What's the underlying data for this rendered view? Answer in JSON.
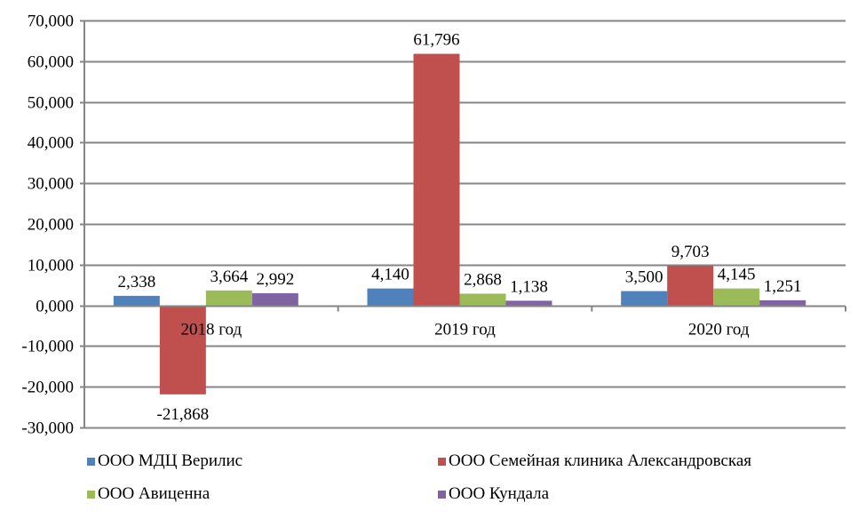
{
  "chart_data": {
    "type": "bar",
    "title": "",
    "xlabel": "",
    "ylabel": "",
    "categories": [
      "2018 год",
      "2019 год",
      "2020 год"
    ],
    "series": [
      {
        "name": "ООО МДЦ Верилис",
        "color": "#4F81BD",
        "values": [
          2.338,
          4.14,
          3.5
        ],
        "labels": [
          "2,338",
          "4,140",
          "3,500"
        ]
      },
      {
        "name": "ООО Семейная клиника Александровская",
        "color": "#C0504D",
        "values": [
          -21.868,
          61.796,
          9.703
        ],
        "labels": [
          "-21,868",
          "61,796",
          "9,703"
        ]
      },
      {
        "name": "ООО Авиценна",
        "color": "#9BBB59",
        "values": [
          3.664,
          2.868,
          4.145
        ],
        "labels": [
          "3,664",
          "2,868",
          "4,145"
        ]
      },
      {
        "name": "ООО Кундала",
        "color": "#8064A2",
        "values": [
          2.992,
          1.138,
          1.251
        ],
        "labels": [
          "2,992",
          "1,138",
          "1,251"
        ]
      }
    ],
    "ylim": [
      -30,
      70
    ],
    "yticks": [
      70,
      60,
      50,
      40,
      30,
      20,
      10,
      0,
      -10,
      -20,
      -30
    ],
    "ytick_labels": [
      "70,000",
      "60,000",
      "50,000",
      "40,000",
      "30,000",
      "20,000",
      "10,000",
      "0,000",
      "-10,000",
      "-20,000",
      "-30,000"
    ],
    "grid": true,
    "gridline_color": "#868686",
    "legend_position": "bottom"
  }
}
